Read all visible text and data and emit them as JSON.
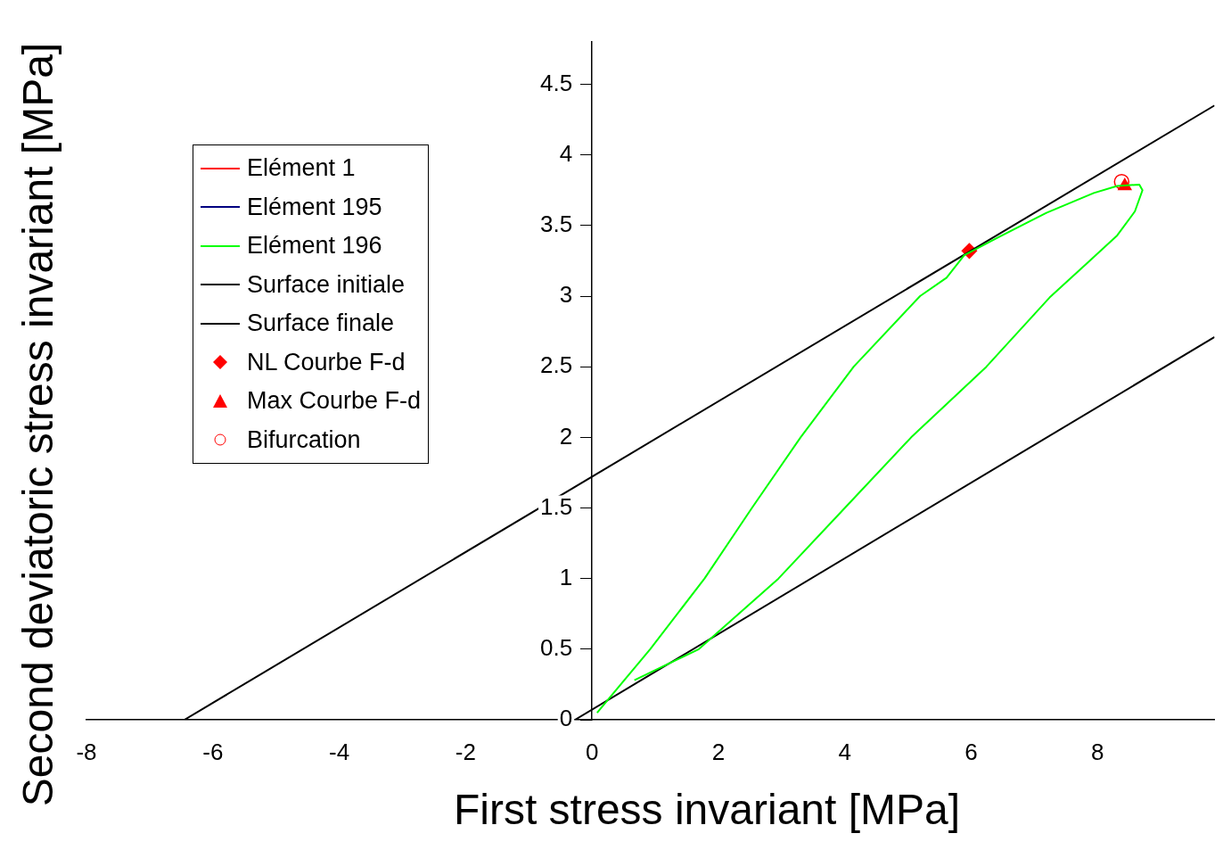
{
  "chart_data": {
    "type": "line",
    "xlabel": "First stress invariant [MPa]",
    "ylabel": "Second deviatoric stress invariant [MPa]",
    "xlim": [
      -8,
      9.85
    ],
    "xticks": [
      -8,
      -6,
      -4,
      -2,
      0,
      2,
      4,
      6,
      8
    ],
    "ylim": [
      0,
      4.8
    ],
    "yticks": [
      0,
      0.5,
      1,
      1.5,
      2,
      2.5,
      3,
      3.5,
      4,
      4.5
    ],
    "legend": "top left",
    "grid": false,
    "series": [
      {
        "name": "Elément 1",
        "type": "line",
        "color": "#ff0000"
      },
      {
        "name": "Elément 195",
        "type": "line",
        "color": "#000080"
      },
      {
        "name": "Elément 196",
        "type": "line",
        "color": "#00ff00",
        "x": [
          0.08,
          0.92,
          1.78,
          2.53,
          3.3,
          4.14,
          5.19,
          5.61,
          5.89,
          6.4,
          7.19,
          7.94,
          8.31,
          8.66,
          8.71,
          8.59,
          8.31,
          7.85,
          7.24,
          6.24,
          5.05,
          4.0,
          2.95,
          1.69,
          0.67
        ],
        "values": [
          0.05,
          0.5,
          1,
          1.5,
          2,
          2.5,
          3,
          3.13,
          3.29,
          3.41,
          3.59,
          3.73,
          3.78,
          3.79,
          3.75,
          3.6,
          3.43,
          3.24,
          2.99,
          2.5,
          2,
          1.5,
          1,
          0.5,
          0.28
        ]
      },
      {
        "name": "Surface initiale",
        "type": "line",
        "color": "#000000",
        "x": [
          -6.45,
          9.85
        ],
        "values": [
          0,
          4.35
        ]
      },
      {
        "name": "Surface finale",
        "type": "line",
        "color": "#000000",
        "x": [
          -0.27,
          9.85
        ],
        "values": [
          0,
          2.71
        ]
      },
      {
        "name": "NL Courbe F-d",
        "type": "scatter",
        "marker": "diamond",
        "color": "#ff0000",
        "x": [
          5.97
        ],
        "values": [
          3.32
        ]
      },
      {
        "name": "Max Courbe F-d",
        "type": "scatter",
        "marker": "triangle",
        "color": "#ff0000",
        "x": [
          8.43
        ],
        "values": [
          3.78
        ]
      },
      {
        "name": "Bifurcation",
        "type": "scatter",
        "marker": "circle",
        "color": "#ff0000",
        "x": [
          8.38
        ],
        "values": [
          3.81
        ]
      }
    ]
  }
}
